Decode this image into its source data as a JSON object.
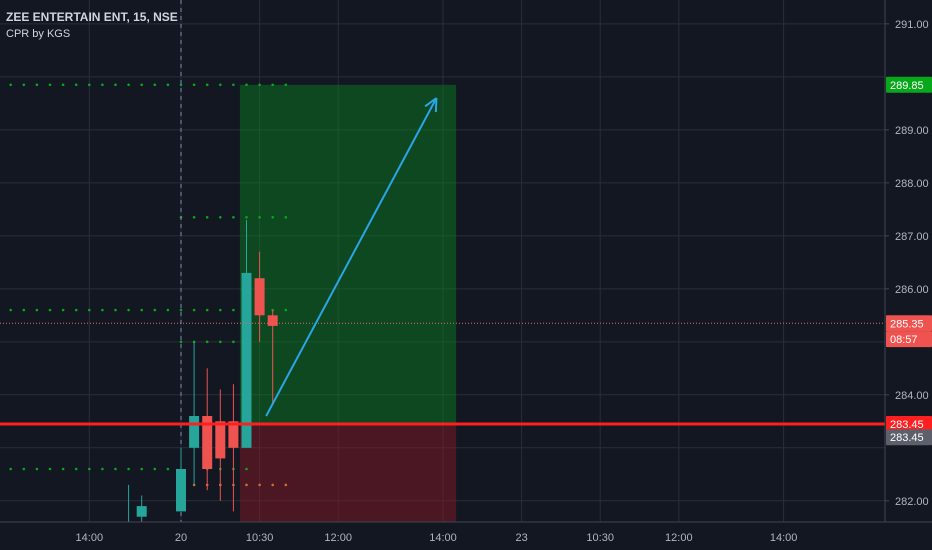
{
  "header": {
    "symbol_line": "ZEE ENTERTAIN ENT, 15, NSE",
    "indicator_label": "CPR by KGS"
  },
  "colors": {
    "background": "#131722",
    "grid": "#2a2e39",
    "bull": "#26a69a",
    "bear": "#ef5350",
    "level_red": "#ff1f1f",
    "target_green": "#08a81a",
    "arrow": "#2aa5e8",
    "price_line": "#e06a6a",
    "axis_text": "#b2b5be"
  },
  "chart_data": {
    "type": "candlestick",
    "title": "ZEE ENTERTAIN ENT, 15, NSE",
    "indicator": "CPR by KGS",
    "y_axis": {
      "ylim": [
        281.6,
        291.45
      ],
      "ticks": [
        "282.00",
        "284.00",
        "286.00",
        "287.00",
        "288.00",
        "289.00",
        "291.00"
      ],
      "position": "right"
    },
    "x_axis": {
      "ticks": [
        {
          "label": "14:00",
          "bar": -7
        },
        {
          "label": "20",
          "bar": 0
        },
        {
          "label": "10:30",
          "bar": 6
        },
        {
          "label": "12:00",
          "bar": 12
        },
        {
          "label": "14:00",
          "bar": 20
        },
        {
          "label": "23",
          "bar": 26
        },
        {
          "label": "10:30",
          "bar": 32
        },
        {
          "label": "12:00",
          "bar": 38
        },
        {
          "label": "14:00",
          "bar": 46
        }
      ]
    },
    "candles": [
      {
        "bar": -4,
        "o": 281.5,
        "h": 282.3,
        "l": 281.5,
        "c": 281.6
      },
      {
        "bar": -3,
        "o": 281.7,
        "h": 282.1,
        "l": 281.6,
        "c": 281.9
      },
      {
        "bar": 0,
        "o": 281.8,
        "h": 283.0,
        "l": 281.8,
        "c": 282.6
      },
      {
        "bar": 1,
        "o": 283.0,
        "h": 285.0,
        "l": 282.3,
        "c": 283.6
      },
      {
        "bar": 2,
        "o": 283.6,
        "h": 284.5,
        "l": 282.2,
        "c": 282.6
      },
      {
        "bar": 3,
        "o": 283.5,
        "h": 284.1,
        "l": 282.0,
        "c": 282.8
      },
      {
        "bar": 4,
        "o": 283.5,
        "h": 284.2,
        "l": 281.8,
        "c": 283.0
      },
      {
        "bar": 5,
        "o": 283.0,
        "h": 287.3,
        "l": 283.0,
        "c": 286.3
      },
      {
        "bar": 6,
        "o": 286.2,
        "h": 286.7,
        "l": 285.0,
        "c": 285.5
      },
      {
        "bar": 7,
        "o": 285.5,
        "h": 285.6,
        "l": 283.8,
        "c": 285.3
      }
    ],
    "cpr_levels": [
      {
        "y": 289.85,
        "color": "#08a81a",
        "from_bar": -14,
        "to_bar": 8
      },
      {
        "y": 287.35,
        "color": "#08a81a",
        "from_bar": 0,
        "to_bar": 8
      },
      {
        "y": 285.6,
        "color": "#08a81a",
        "from_bar": -14,
        "to_bar": 8
      },
      {
        "y": 285.0,
        "color": "#08a81a",
        "from_bar": 0,
        "to_bar": 5
      },
      {
        "y": 282.6,
        "color": "#08a81a",
        "from_bar": -14,
        "to_bar": -1
      },
      {
        "y": 282.6,
        "color": "#08a81a",
        "from_bar": 2,
        "to_bar": 5
      },
      {
        "y": 282.3,
        "color": "#d07030",
        "from_bar": 1,
        "to_bar": 8
      }
    ],
    "position": {
      "entry": 283.45,
      "target": 289.85,
      "stop": 281.6,
      "from_bar": 4.5,
      "to_bar": 21
    },
    "arrow": {
      "from": {
        "bar": 6.5,
        "y": 283.6
      },
      "to": {
        "bar": 19.5,
        "y": 289.6
      }
    },
    "horizontal_line": {
      "y": 283.45
    },
    "last_price_line": {
      "y": 285.35
    },
    "price_labels": [
      {
        "text": "289.85",
        "y": 289.85,
        "color": "#08a81a"
      },
      {
        "text": "285.35",
        "y": 285.35,
        "color": "#ef5350"
      },
      {
        "text": "08:57",
        "y": 285.05,
        "color": "#ef5350"
      },
      {
        "text": "283.45",
        "y": 283.45,
        "color": "#ff1f1f"
      },
      {
        "text": "283.45",
        "y": 283.2,
        "color": "#5d606b"
      }
    ]
  }
}
